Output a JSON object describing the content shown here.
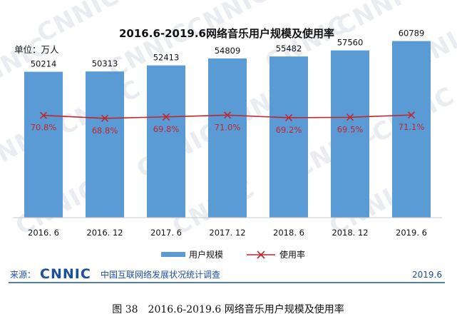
{
  "chart_data": {
    "type": "bar",
    "title": "2016.6-2019.6网络音乐用户规模及使用率",
    "unit_label": "单位：万人",
    "categories": [
      "2016. 6",
      "2016. 12",
      "2017. 6",
      "2017. 12",
      "2018. 6",
      "2018. 12",
      "2019. 6"
    ],
    "series": [
      {
        "name": "用户规模",
        "kind": "bar",
        "values": [
          50214,
          50313,
          52413,
          54809,
          55482,
          57560,
          60789
        ],
        "labels": [
          "50214",
          "50313",
          "52413",
          "54809",
          "55482",
          "57560",
          "60789"
        ],
        "color": "#5b9bd5"
      },
      {
        "name": "使用率",
        "kind": "line",
        "values": [
          70.8,
          68.8,
          69.8,
          71.0,
          69.2,
          69.5,
          71.1
        ],
        "labels": [
          "70.8%",
          "68.8%",
          "69.8%",
          "71.0%",
          "69.2%",
          "69.5%",
          "71.1%"
        ],
        "color": "#c0272d",
        "marker": "x"
      }
    ],
    "ylim": [
      0,
      70000
    ],
    "rate_ylim": [
      0,
      100
    ],
    "legend_position": "bottom",
    "grid": false
  },
  "source": {
    "label": "来源：",
    "logo_text": "CNNIC",
    "org": "中国互联网络发展状况统计调查",
    "date": "2019.6"
  },
  "caption": "图 38　2016.6-2019.6 网络音乐用户规模及使用率",
  "colors": {
    "bar": "#5b9bd5",
    "line": "#c0272d",
    "source_rule": "#1f4e9c"
  }
}
